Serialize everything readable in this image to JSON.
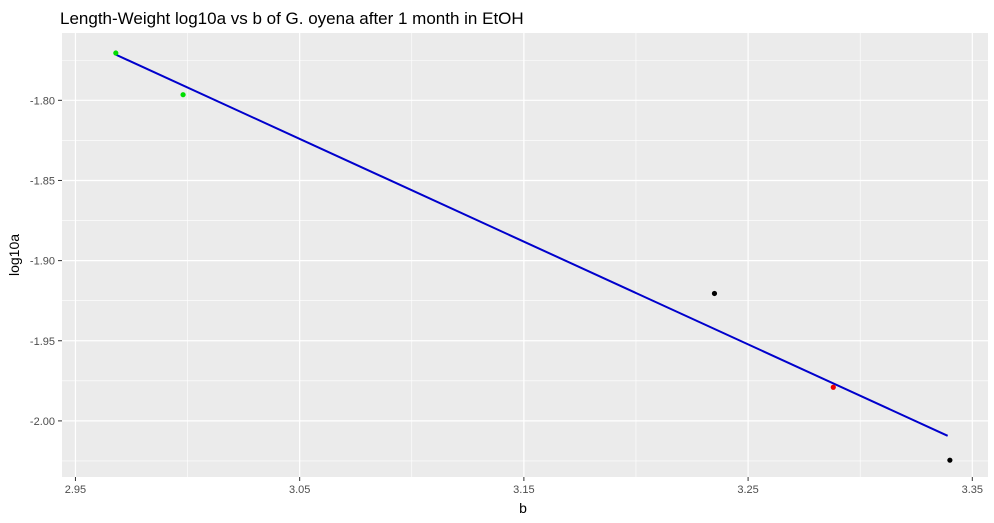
{
  "chart_data": {
    "type": "scatter",
    "title": "Length-Weight log10a vs b of G. oyena after 1 month in EtOH",
    "xlabel": "b",
    "ylabel": "log10a",
    "xlim": [
      2.944,
      3.357
    ],
    "ylim": [
      -2.035,
      -1.758
    ],
    "x_ticks": [
      2.95,
      3.05,
      3.15,
      3.25,
      3.35
    ],
    "x_tick_labels": [
      "2.95",
      "3.05",
      "3.15",
      "3.25",
      "3.35"
    ],
    "y_ticks": [
      -2.0,
      -1.95,
      -1.9,
      -1.85,
      -1.8
    ],
    "y_tick_labels": [
      "-2.00",
      "-1.95",
      "-1.90",
      "-1.85",
      "-1.80"
    ],
    "grid": true,
    "background": "#ebebeb",
    "grid_color": "#ffffff",
    "points": [
      {
        "x": 2.968,
        "y": -1.7705,
        "color": "#00dd00"
      },
      {
        "x": 2.998,
        "y": -1.7965,
        "color": "#00dd00"
      },
      {
        "x": 3.235,
        "y": -1.9205,
        "color": "#000000"
      },
      {
        "x": 3.288,
        "y": -1.979,
        "color": "#ee0000"
      },
      {
        "x": 3.34,
        "y": -2.0245,
        "color": "#000000"
      }
    ],
    "fit_line": {
      "color": "#0000cc",
      "points": [
        {
          "x": 2.968,
          "y": -1.7715
        },
        {
          "x": 3.339,
          "y": -2.0093
        }
      ]
    }
  }
}
